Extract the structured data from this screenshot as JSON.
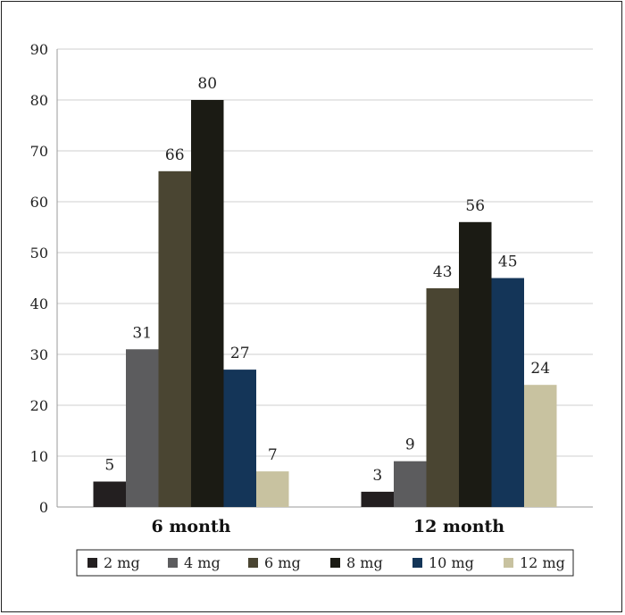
{
  "chart_data": {
    "type": "bar",
    "title": "",
    "xlabel": "",
    "ylabel": "",
    "categories": [
      "6 month",
      "12 month"
    ],
    "ylim": [
      0,
      90
    ],
    "yticks": [
      0,
      10,
      20,
      30,
      40,
      50,
      60,
      70,
      80,
      90
    ],
    "grid": true,
    "legend_position": "bottom",
    "series": [
      {
        "name": "2 mg",
        "values": [
          5,
          3
        ],
        "color": "#231f20"
      },
      {
        "name": "4 mg",
        "values": [
          31,
          9
        ],
        "color": "#5c5c5e"
      },
      {
        "name": "6 mg",
        "values": [
          66,
          43
        ],
        "color": "#4a4532"
      },
      {
        "name": "8 mg",
        "values": [
          80,
          56
        ],
        "color": "#1b1b14"
      },
      {
        "name": "10 mg",
        "values": [
          27,
          45
        ],
        "color": "#143558"
      },
      {
        "name": "12 mg",
        "values": [
          7,
          24
        ],
        "color": "#c8c2a0"
      }
    ]
  }
}
